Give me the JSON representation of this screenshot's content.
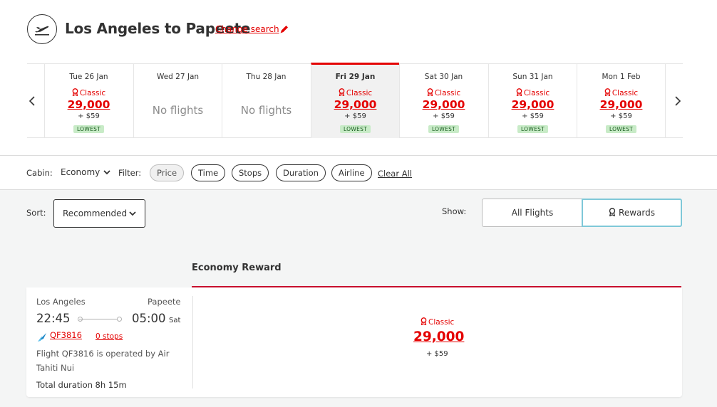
{
  "header": {
    "title": "Los Angeles to Papeete",
    "change_search": "Change search",
    "icon": "plane-takeoff-icon",
    "accent": "#e40000"
  },
  "dates": [
    {
      "day": "Tue 26 Jan",
      "fare_class": "Classic",
      "points": "29,000",
      "tax": "+ $59",
      "badge": "LOWEST",
      "selected": false,
      "available": true
    },
    {
      "day": "Wed 27 Jan",
      "no_flights": "No flights",
      "selected": false,
      "available": false
    },
    {
      "day": "Thu 28 Jan",
      "no_flights": "No flights",
      "selected": false,
      "available": false
    },
    {
      "day": "Fri 29 Jan",
      "fare_class": "Classic",
      "points": "29,000",
      "tax": "+ $59",
      "badge": "LOWEST",
      "selected": true,
      "available": true
    },
    {
      "day": "Sat 30 Jan",
      "fare_class": "Classic",
      "points": "29,000",
      "tax": "+ $59",
      "badge": "LOWEST",
      "selected": false,
      "available": true
    },
    {
      "day": "Sun 31 Jan",
      "fare_class": "Classic",
      "points": "29,000",
      "tax": "+ $59",
      "badge": "LOWEST",
      "selected": false,
      "available": true
    },
    {
      "day": "Mon 1 Feb",
      "fare_class": "Classic",
      "points": "29,000",
      "tax": "+ $59",
      "badge": "LOWEST",
      "selected": false,
      "available": true
    }
  ],
  "filters": {
    "cabin_label": "Cabin:",
    "cabin_value": "Economy",
    "filter_label": "Filter:",
    "pills": [
      "Price",
      "Time",
      "Stops",
      "Duration",
      "Airline"
    ],
    "clear_all": "Clear All"
  },
  "sort": {
    "label": "Sort:",
    "value": "Recommended"
  },
  "show": {
    "label": "Show:",
    "all_flights": "All Flights",
    "rewards": "Rewards"
  },
  "results": {
    "column_header": "Economy Reward",
    "flight": {
      "origin": "Los Angeles",
      "destination": "Papeete",
      "depart": "22:45",
      "arrive": "05:00",
      "arrive_day": "Sat",
      "flight_no": "QF3816",
      "stops": "0 stops",
      "operated_by": "Flight QF3816 is operated by Air Tahiti Nui",
      "duration": "Total duration 8h 15m",
      "fare_class": "Classic",
      "points": "29,000",
      "tax": "+ $59"
    }
  }
}
